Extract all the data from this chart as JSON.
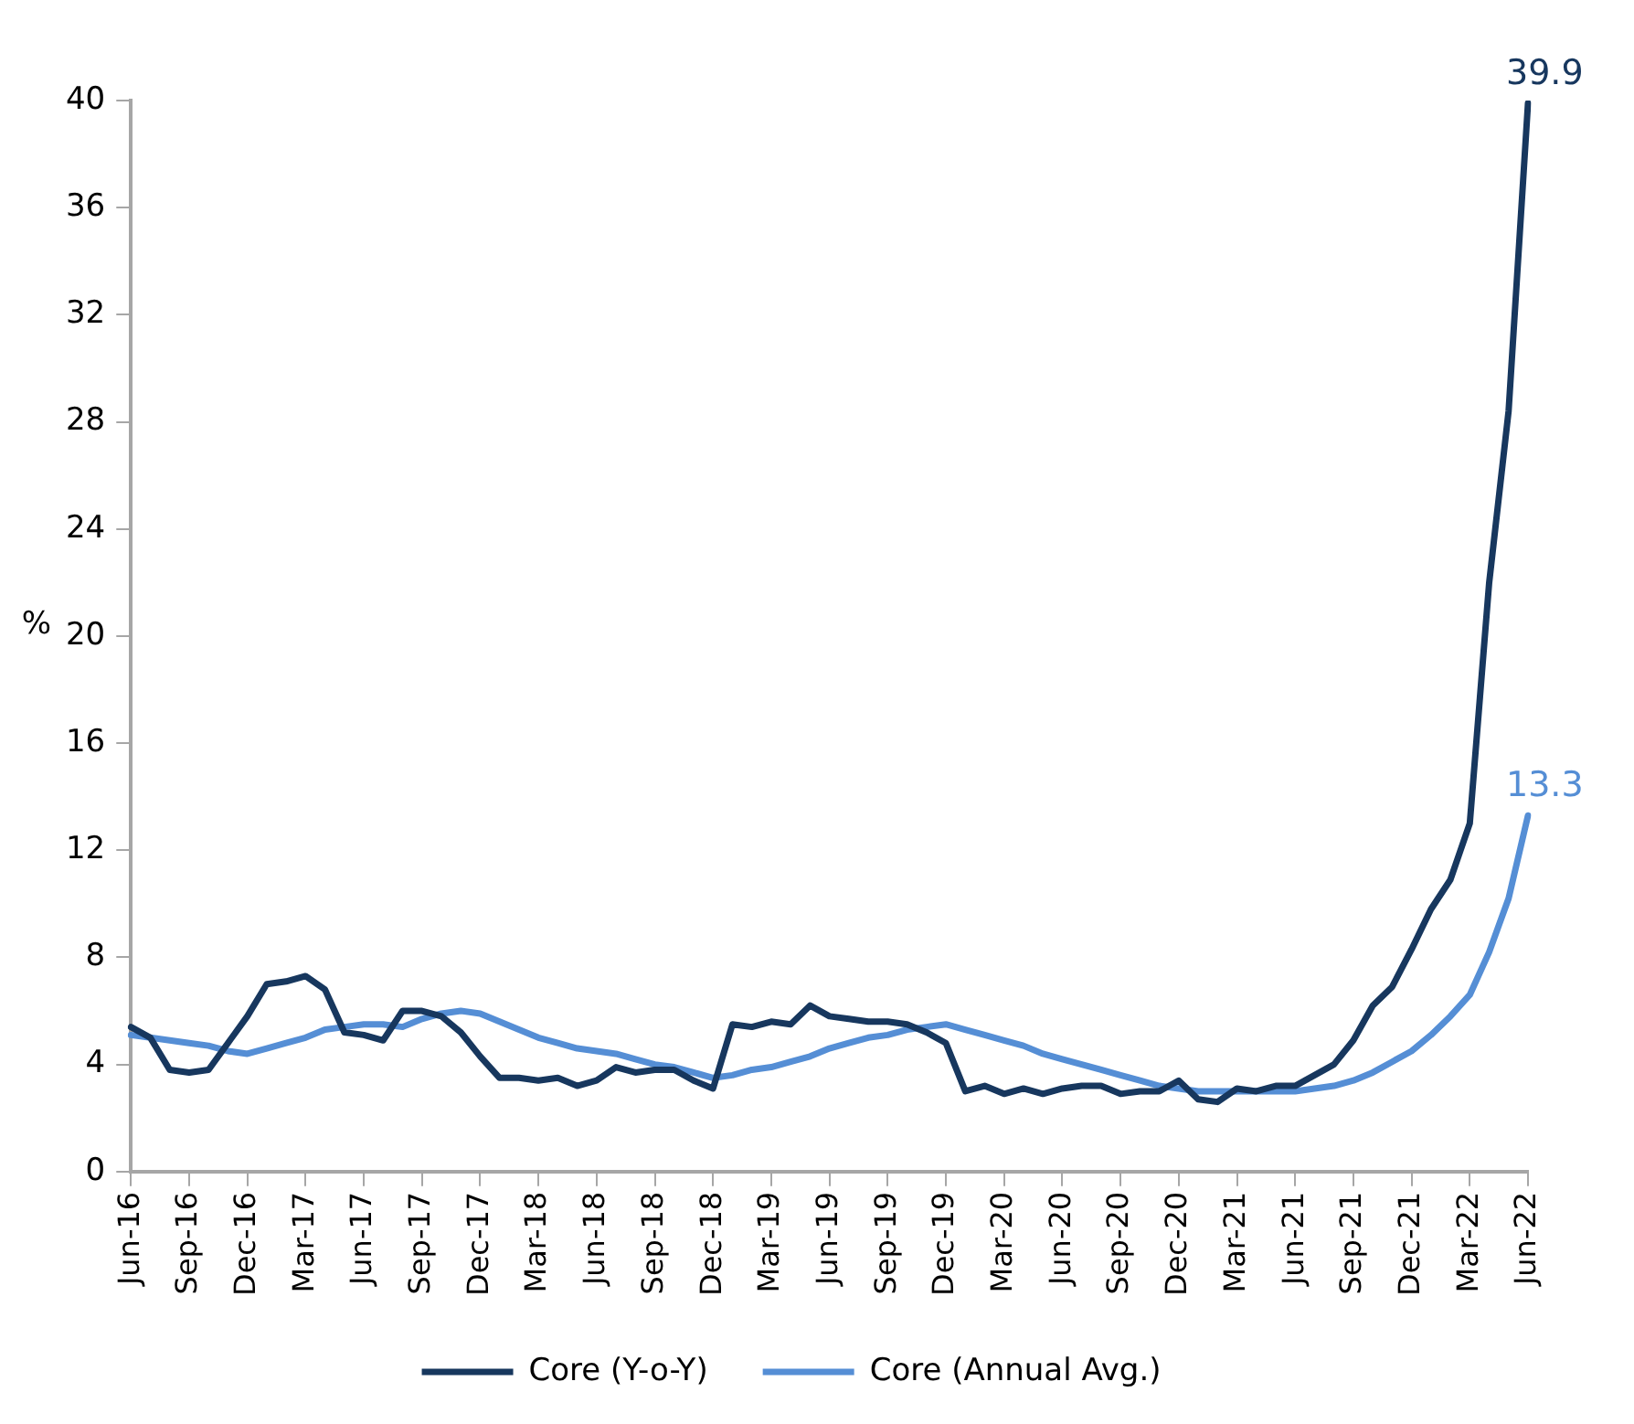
{
  "chart_data": {
    "type": "line",
    "ylabel": "%",
    "legend": "bottom",
    "grid": false,
    "marker": "none",
    "line_style": "solid",
    "categories": [
      "Jun-16",
      null,
      null,
      "Sep-16",
      null,
      null,
      "Dec-16",
      null,
      null,
      "Mar-17",
      null,
      null,
      "Jun-17",
      null,
      null,
      "Sep-17",
      null,
      null,
      "Dec-17",
      null,
      null,
      "Mar-18",
      null,
      null,
      "Jun-18",
      null,
      null,
      "Sep-18",
      null,
      null,
      "Dec-18",
      null,
      null,
      "Mar-19",
      null,
      null,
      "Jun-19",
      null,
      null,
      "Sep-19",
      null,
      null,
      "Dec-19",
      null,
      null,
      "Mar-20",
      null,
      null,
      "Jun-20",
      null,
      null,
      "Sep-20",
      null,
      null,
      "Dec-20",
      null,
      null,
      "Mar-21",
      null,
      null,
      "Jun-21",
      null,
      null,
      "Sep-21",
      null,
      null,
      "Dec-21",
      null,
      null,
      "Mar-22",
      null,
      null,
      "Jun-22"
    ],
    "ylim": [
      0,
      40
    ],
    "yticks": [
      0,
      4,
      8,
      12,
      16,
      20,
      24,
      28,
      32,
      36,
      40
    ],
    "series": [
      {
        "name": "Core (Y-o-Y)",
        "color": "#17375e",
        "values": [
          5.4,
          5.0,
          3.8,
          3.7,
          3.8,
          4.8,
          5.8,
          7.0,
          7.1,
          7.3,
          6.8,
          5.2,
          5.1,
          4.9,
          6.0,
          6.0,
          5.8,
          5.2,
          4.3,
          3.5,
          3.5,
          3.4,
          3.5,
          3.2,
          3.4,
          3.9,
          3.7,
          3.8,
          3.8,
          3.4,
          3.1,
          5.5,
          5.4,
          5.6,
          5.5,
          6.2,
          5.8,
          5.7,
          5.6,
          5.6,
          5.5,
          5.2,
          4.8,
          3.0,
          3.2,
          2.9,
          3.1,
          2.9,
          3.1,
          3.2,
          3.2,
          2.9,
          3.0,
          3.0,
          3.4,
          2.7,
          2.6,
          3.1,
          3.0,
          3.2,
          3.2,
          3.6,
          4.0,
          4.9,
          6.2,
          6.9,
          8.3,
          9.8,
          10.9,
          13.0,
          22.0,
          28.4,
          39.9
        ],
        "value_labels": [
          null,
          null,
          null,
          null,
          null,
          null,
          null,
          null,
          null,
          null,
          null,
          null,
          null,
          null,
          null,
          null,
          null,
          null,
          null,
          null,
          null,
          null,
          null,
          null,
          null,
          null,
          null,
          null,
          null,
          null,
          null,
          null,
          null,
          null,
          null,
          null,
          null,
          null,
          null,
          null,
          null,
          null,
          null,
          null,
          null,
          null,
          null,
          null,
          null,
          null,
          null,
          null,
          null,
          null,
          null,
          null,
          null,
          null,
          null,
          null,
          null,
          null,
          null,
          null,
          null,
          null,
          null,
          null,
          null,
          null,
          null,
          null,
          "39.9"
        ]
      },
      {
        "name": "Core (Annual Avg.)",
        "color": "#558ed5",
        "values": [
          5.1,
          5.0,
          4.9,
          4.8,
          4.7,
          4.5,
          4.4,
          4.6,
          4.8,
          5.0,
          5.3,
          5.4,
          5.5,
          5.5,
          5.4,
          5.7,
          5.9,
          6.0,
          5.9,
          5.6,
          5.3,
          5.0,
          4.8,
          4.6,
          4.5,
          4.4,
          4.2,
          4.0,
          3.9,
          3.7,
          3.5,
          3.6,
          3.8,
          3.9,
          4.1,
          4.3,
          4.6,
          4.8,
          5.0,
          5.1,
          5.3,
          5.4,
          5.5,
          5.3,
          5.1,
          4.9,
          4.7,
          4.4,
          4.2,
          4.0,
          3.8,
          3.6,
          3.4,
          3.2,
          3.1,
          3.0,
          3.0,
          3.0,
          3.0,
          3.0,
          3.0,
          3.1,
          3.2,
          3.4,
          3.7,
          4.1,
          4.5,
          5.1,
          5.8,
          6.6,
          8.2,
          10.2,
          13.3
        ],
        "value_labels": [
          null,
          null,
          null,
          null,
          null,
          null,
          null,
          null,
          null,
          null,
          null,
          null,
          null,
          null,
          null,
          null,
          null,
          null,
          null,
          null,
          null,
          null,
          null,
          null,
          null,
          null,
          null,
          null,
          null,
          null,
          null,
          null,
          null,
          null,
          null,
          null,
          null,
          null,
          null,
          null,
          null,
          null,
          null,
          null,
          null,
          null,
          null,
          null,
          null,
          null,
          null,
          null,
          null,
          null,
          null,
          null,
          null,
          null,
          null,
          null,
          null,
          null,
          null,
          null,
          null,
          null,
          null,
          null,
          null,
          null,
          null,
          null,
          "13.3"
        ]
      }
    ]
  }
}
